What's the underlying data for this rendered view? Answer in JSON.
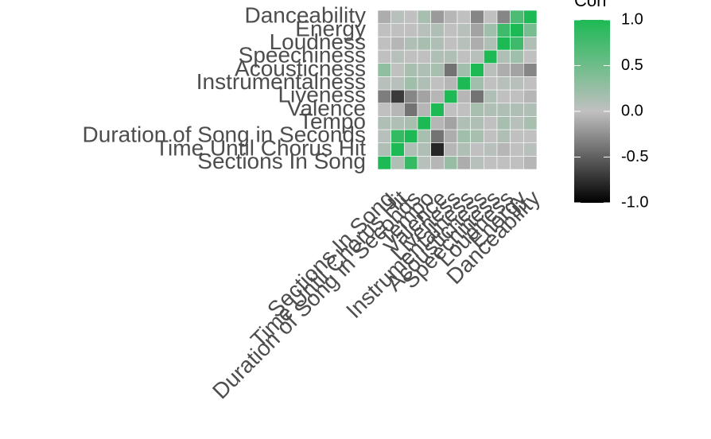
{
  "chart_data": {
    "type": "heatmap",
    "title": "",
    "xlabel": "",
    "ylabel": "",
    "variables": [
      "Sections In Song",
      "Time Until Chorus Hit",
      "Duration of Song in Seconds",
      "Tempo",
      "Valence",
      "Liveness",
      "Instrumentalness",
      "Acousticness",
      "Speechiness",
      "Loudness",
      "Energy",
      "Danceability"
    ],
    "matrix": [
      [
        1.0,
        0.1,
        0.85,
        0.05,
        -0.05,
        0.25,
        -0.1,
        0.05,
        0.0,
        0.0,
        0.0,
        -0.05
      ],
      [
        0.1,
        1.0,
        0.1,
        0.1,
        -0.8,
        -0.05,
        0.1,
        0.0,
        0.05,
        -0.05,
        0.0,
        0.05
      ],
      [
        0.05,
        0.85,
        1.0,
        0.15,
        -0.4,
        -0.1,
        0.2,
        0.15,
        0.0,
        0.1,
        0.0,
        0.0
      ],
      [
        0.1,
        0.1,
        0.15,
        1.0,
        -0.05,
        -0.15,
        0.1,
        0.1,
        0.0,
        0.15,
        0.05,
        0.15
      ],
      [
        0.0,
        -0.05,
        -0.4,
        -0.05,
        1.0,
        0.0,
        0.0,
        0.15,
        0.1,
        0.1,
        0.1,
        0.1
      ],
      [
        -0.35,
        -0.7,
        -0.3,
        -0.15,
        -0.05,
        1.0,
        -0.05,
        -0.4,
        0.1,
        0.0,
        0.0,
        -0.05
      ],
      [
        0.05,
        0.05,
        0.2,
        0.1,
        0.0,
        -0.05,
        1.0,
        0.2,
        0.0,
        0.05,
        0.05,
        0.0
      ],
      [
        0.3,
        0.0,
        0.15,
        0.1,
        0.15,
        -0.4,
        0.2,
        1.0,
        0.05,
        -0.1,
        -0.15,
        -0.3
      ],
      [
        0.0,
        0.05,
        0.0,
        0.0,
        0.1,
        0.1,
        0.0,
        0.05,
        1.0,
        0.1,
        0.2,
        0.0
      ],
      [
        0.0,
        -0.05,
        0.1,
        0.15,
        0.1,
        0.0,
        0.05,
        -0.1,
        0.1,
        1.0,
        0.8,
        0.1
      ],
      [
        0.0,
        0.0,
        0.0,
        0.05,
        0.1,
        0.0,
        0.05,
        -0.15,
        0.2,
        0.8,
        1.0,
        0.45
      ],
      [
        -0.1,
        0.05,
        0.0,
        0.15,
        -0.2,
        -0.05,
        0.0,
        -0.3,
        0.0,
        -0.3,
        0.7,
        1.0
      ]
    ],
    "value_range": [
      -1.0,
      1.0
    ],
    "legend": {
      "title": "Corr",
      "ticks": [
        "1.0",
        "0.5",
        "0.0",
        "-0.5",
        "-1.0"
      ],
      "tick_values": [
        1.0,
        0.5,
        0.0,
        -0.5,
        -1.0
      ],
      "placement": "right"
    },
    "colors": {
      "low": "#000000",
      "mid": "#C0C0C0",
      "high": "#1DB954"
    },
    "grid": false
  }
}
